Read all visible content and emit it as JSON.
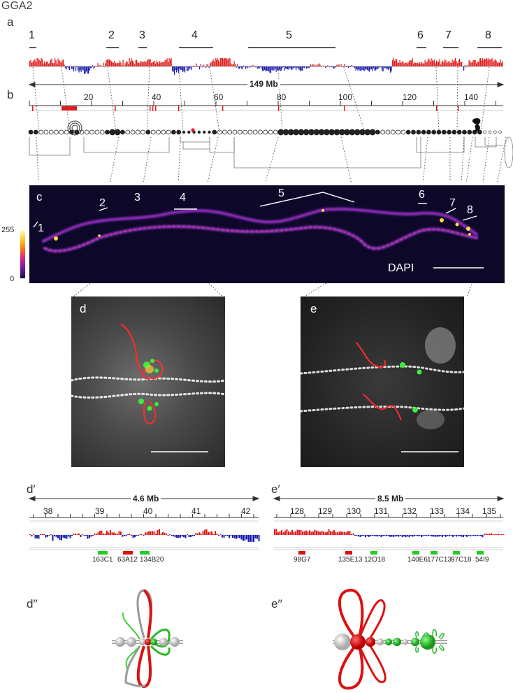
{
  "title": "GGA2",
  "panels": {
    "a": "a",
    "b": "b",
    "c": "c",
    "d": "d",
    "e": "e",
    "d_prime": "d′",
    "e_prime": "e′",
    "d_dprime": "d′′",
    "e_dprime": "e′′"
  },
  "regions": [
    "1",
    "2",
    "3",
    "4",
    "5",
    "6",
    "7",
    "8"
  ],
  "chromosome_span": "149 Mb",
  "b_ticks": [
    "20",
    "40",
    "60",
    "80",
    "100",
    "120",
    "140"
  ],
  "c_regions": [
    "1",
    "2",
    "3",
    "4",
    "5",
    "6",
    "7",
    "8"
  ],
  "colorbar": {
    "max": "255",
    "min": "0"
  },
  "dapi_label": "DAPI",
  "d_prime": {
    "span": "4.6 Mb",
    "ticks": [
      "38",
      "39",
      "40",
      "41",
      "42"
    ],
    "probes": [
      {
        "label": "163C1",
        "color": "#22cc22"
      },
      {
        "label": "63A12",
        "color": "#dd1111"
      },
      {
        "label": "134B20",
        "color": "#22cc22"
      }
    ]
  },
  "e_prime": {
    "span": "8.5 Mb",
    "ticks": [
      "128",
      "129",
      "130",
      "131",
      "132",
      "133",
      "134",
      "135"
    ],
    "probes": [
      {
        "label": "98G7",
        "color": "#dd1111"
      },
      {
        "label": "135E13",
        "color": "#dd1111"
      },
      {
        "label": "12O18",
        "color": "#22cc22"
      },
      {
        "label": "140E6",
        "color": "#22cc22"
      },
      {
        "label": "177C13",
        "color": "#22cc22"
      },
      {
        "label": "97C18",
        "color": "#22cc22"
      },
      {
        "label": "54I9",
        "color": "#22cc22"
      }
    ]
  },
  "colors": {
    "red": "#e31a1a",
    "blue": "#1a1ab0",
    "green": "#22cc22",
    "dark_bg": "#10082a"
  }
}
